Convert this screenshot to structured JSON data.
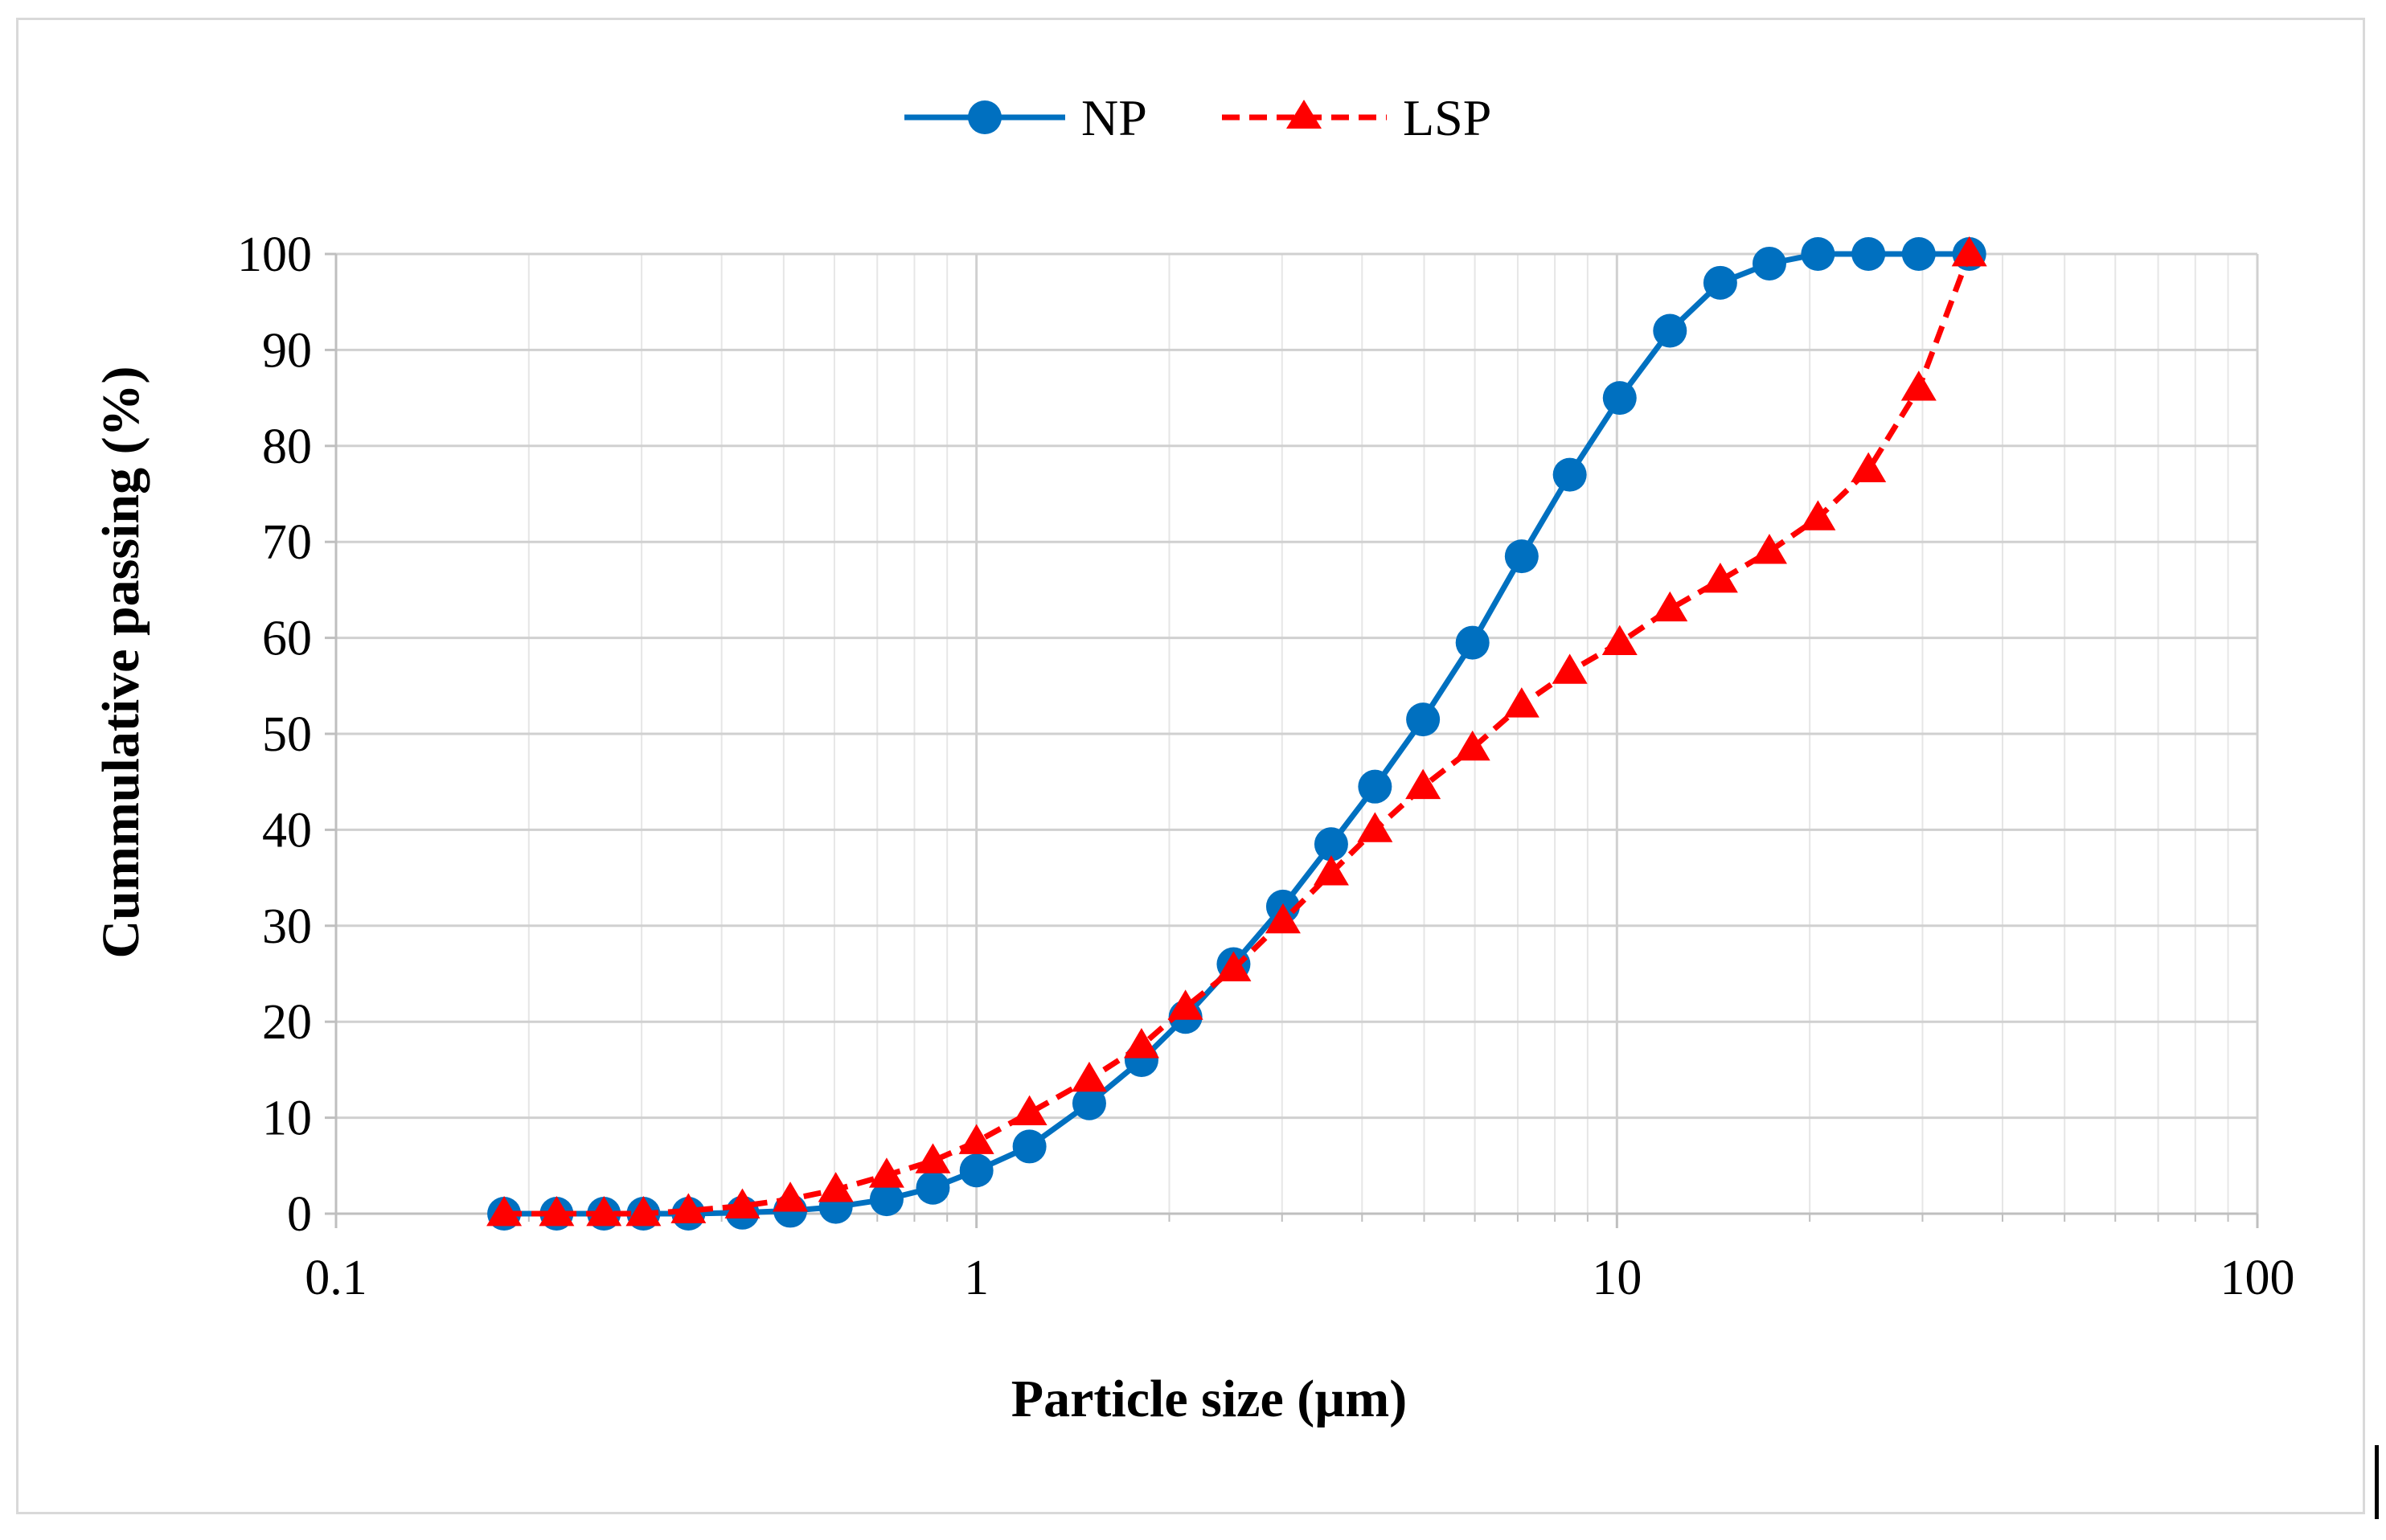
{
  "chart_data": {
    "type": "line",
    "title": "",
    "xlabel": "Particle size (µm)",
    "ylabel": "Cummulative passing (%)",
    "xscale": "log",
    "xlim": [
      0.1,
      100
    ],
    "ylim": [
      0,
      100
    ],
    "xticks": [
      0.1,
      1,
      10,
      100
    ],
    "xtick_labels": [
      "0.1",
      "1",
      "10",
      "100"
    ],
    "yticks": [
      0,
      10,
      20,
      30,
      40,
      50,
      60,
      70,
      80,
      90,
      100
    ],
    "ytick_labels": [
      "0",
      "10",
      "20",
      "30",
      "40",
      "50",
      "60",
      "70",
      "80",
      "90",
      "100"
    ],
    "grid": true,
    "legend_position": "top-center",
    "series": [
      {
        "name": "NP",
        "color": "#0070c0",
        "marker": "circle",
        "linestyle": "solid",
        "x": [
          0.183,
          0.221,
          0.262,
          0.302,
          0.355,
          0.431,
          0.512,
          0.603,
          0.724,
          0.855,
          1.0,
          1.21,
          1.5,
          1.81,
          2.12,
          2.52,
          3.01,
          3.58,
          4.19,
          4.98,
          5.95,
          7.1,
          8.44,
          10.1,
          12.1,
          14.5,
          17.3,
          20.6,
          24.7,
          29.6,
          35.5
        ],
        "y": [
          0,
          0,
          0,
          0,
          0,
          0.1,
          0.3,
          0.7,
          1.5,
          2.7,
          4.5,
          7,
          11.5,
          16,
          20.5,
          26,
          32,
          38.5,
          44.5,
          51.5,
          59.5,
          68.5,
          77,
          85,
          92,
          97,
          99,
          100,
          100,
          100,
          100
        ]
      },
      {
        "name": "LSP",
        "color": "#ff0000",
        "marker": "triangle",
        "linestyle": "dashed",
        "x": [
          0.183,
          0.221,
          0.262,
          0.302,
          0.355,
          0.431,
          0.512,
          0.603,
          0.724,
          0.855,
          1.0,
          1.21,
          1.5,
          1.81,
          2.12,
          2.52,
          3.01,
          3.58,
          4.19,
          4.98,
          5.95,
          7.1,
          8.44,
          10.1,
          12.1,
          14.5,
          17.3,
          20.6,
          24.7,
          29.6,
          35.5
        ],
        "y": [
          0,
          0,
          0,
          0,
          0.3,
          0.8,
          1.5,
          2.5,
          4,
          5.5,
          7.5,
          10.5,
          14,
          17.5,
          21.5,
          25.5,
          30.5,
          35.5,
          40,
          44.5,
          48.5,
          53,
          56.5,
          59.5,
          63,
          66,
          69,
          72.5,
          77.5,
          86,
          100
        ]
      }
    ]
  }
}
